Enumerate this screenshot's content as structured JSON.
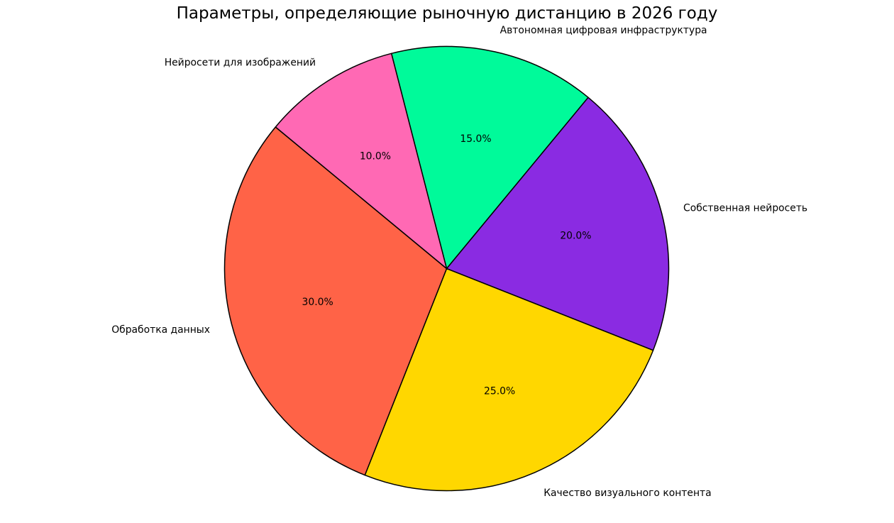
{
  "chart_data": {
    "type": "pie",
    "title": "Параметры, определяющие рыночную дистанцию в 2026 году",
    "labels": [
      "Автономная цифровая инфраструктура",
      "Собственная нейросеть",
      "Качество визуального контента",
      "Обработка данных",
      "Нейросети для изображений"
    ],
    "values": [
      15.0,
      20.0,
      25.0,
      30.0,
      10.0
    ],
    "pct_labels": [
      "15.0%",
      "20.0%",
      "25.0%",
      "30.0%",
      "10.0%"
    ],
    "colors": [
      "#00FA9A",
      "#8A2BE2",
      "#FFD700",
      "#FF6347",
      "#FF69B4"
    ],
    "edge_color": "#000000",
    "text_color": "#000000",
    "background": "#FFFFFF",
    "legend": "none",
    "start_angle_deg": 104.4,
    "clockwise": true,
    "label_distance": 1.1,
    "pct_distance": 0.6
  }
}
